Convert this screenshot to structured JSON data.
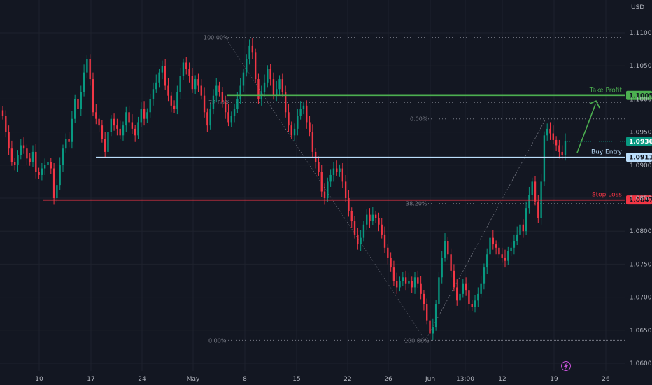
{
  "chart_data": {
    "type": "candlestick",
    "currency": "USD",
    "y_ticks": [
      "1.11000",
      "1.10500",
      "1.10000",
      "1.09500",
      "1.09000",
      "1.08500",
      "1.08000",
      "1.07500",
      "1.07000",
      "1.06500",
      "1.06000"
    ],
    "y_tick_values": [
      1.11,
      1.105,
      1.1,
      1.095,
      1.09,
      1.085,
      1.08,
      1.075,
      1.07,
      1.065,
      1.06
    ],
    "x_ticks": [
      "10",
      "17",
      "24",
      "May",
      "8",
      "15",
      "22",
      "26",
      "Jun",
      "13:00",
      "12",
      "19",
      "26"
    ],
    "ylim": [
      1.0593,
      1.1132
    ],
    "levels": [
      {
        "label": "Take Profit",
        "value": 1.10054,
        "tag": "1.10054",
        "color": "#4caf50"
      },
      {
        "label": "Buy Entry",
        "value": 1.09118,
        "tag": "1.09118",
        "color": "#bbdefb"
      },
      {
        "label": "Stop Loss",
        "value": 1.08472,
        "tag": "1.08472",
        "color": "#f23645"
      }
    ],
    "last_price": {
      "value": 1.0936,
      "tag": "1.09360",
      "color": "#089981"
    },
    "fib_labels": [
      "100.00%",
      "78.60%",
      "0.00%",
      "0.00%",
      "38.20%",
      "100.00%"
    ],
    "fib_1_high": 1.1093,
    "fib_1_low": 1.06345,
    "fib_2_high": 1.097,
    "series_close": [
      1.0975,
      1.095,
      1.0925,
      1.0905,
      1.09,
      1.0915,
      1.093,
      1.0925,
      1.091,
      1.0905,
      1.092,
      1.089,
      1.0885,
      1.0895,
      1.09,
      1.0905,
      1.0895,
      1.085,
      1.087,
      1.09,
      1.0925,
      1.094,
      1.0935,
      1.097,
      1.1,
      1.0985,
      1.101,
      1.104,
      1.106,
      1.103,
      1.098,
      1.097,
      1.096,
      1.094,
      1.092,
      1.095,
      1.097,
      1.096,
      1.0955,
      1.0945,
      1.096,
      1.098,
      1.0965,
      1.0955,
      1.0945,
      1.0965,
      1.0985,
      1.097,
      1.098,
      1.1,
      1.1015,
      1.1025,
      1.104,
      1.105,
      1.102,
      1.1005,
      1.099,
      1.0985,
      1.101,
      1.1035,
      1.1055,
      1.1045,
      1.1035,
      1.1015,
      1.103,
      1.102,
      1.1005,
      1.098,
      1.096,
      1.0985,
      1.1005,
      1.102,
      1.101,
      1.0995,
      1.098,
      1.0965,
      1.0975,
      1.0985,
      1.1,
      1.102,
      1.104,
      1.106,
      1.108,
      1.107,
      1.103,
      1.1,
      1.101,
      1.1025,
      1.1045,
      1.103,
      1.1005,
      1.1015,
      1.103,
      1.101,
      1.098,
      1.096,
      1.0945,
      1.0955,
      1.0975,
      1.0985,
      1.099,
      1.0965,
      1.095,
      1.092,
      1.0905,
      1.089,
      1.086,
      1.085,
      1.0875,
      1.0885,
      1.0895,
      1.089,
      1.0895,
      1.0875,
      1.085,
      1.083,
      1.0815,
      1.0795,
      1.078,
      1.079,
      1.081,
      1.0825,
      1.0815,
      1.0825,
      1.082,
      1.081,
      1.0795,
      1.0775,
      1.076,
      1.0745,
      1.0725,
      1.0715,
      1.0725,
      1.073,
      1.072,
      1.0725,
      1.0715,
      1.073,
      1.072,
      1.0705,
      1.069,
      1.0665,
      1.0645,
      1.0655,
      1.069,
      1.073,
      1.076,
      1.0785,
      1.0765,
      1.074,
      1.0715,
      1.0695,
      1.0705,
      1.072,
      1.071,
      1.069,
      1.0685,
      1.0695,
      1.0705,
      1.072,
      1.0745,
      1.0765,
      1.079,
      1.078,
      1.0775,
      1.0765,
      1.076,
      1.0755,
      1.077,
      1.0775,
      1.0785,
      1.0795,
      1.081,
      1.08,
      1.0835,
      1.0855,
      1.0875,
      1.0845,
      1.082,
      1.0875,
      1.0945,
      1.0955,
      1.0948,
      1.0938,
      1.093,
      1.092,
      1.0915,
      1.0936
    ]
  }
}
